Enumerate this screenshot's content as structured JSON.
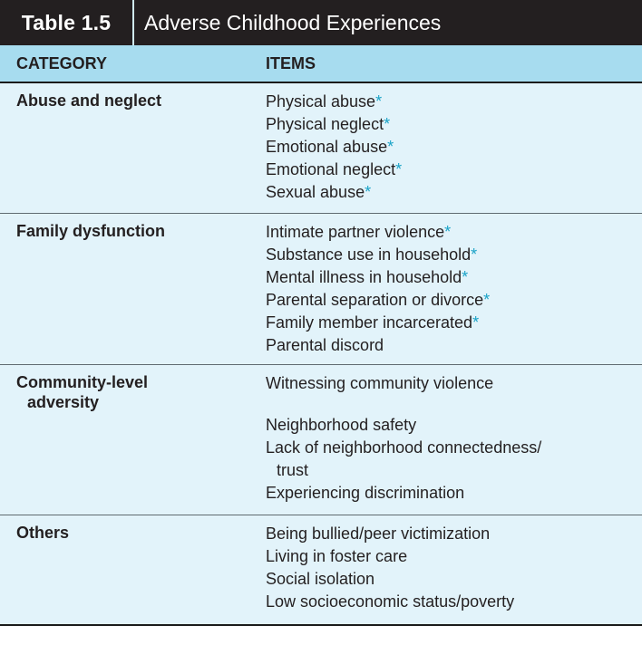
{
  "table": {
    "number": "Table 1.5",
    "title": "Adverse Childhood Experiences"
  },
  "headers": {
    "category": "CATEGORY",
    "items": "ITEMS"
  },
  "rows": [
    {
      "category": "Abuse and neglect",
      "items": [
        {
          "text": "Physical abuse",
          "star": "*"
        },
        {
          "text": "Physical neglect",
          "star": "*"
        },
        {
          "text": "Emotional abuse",
          "star": "*"
        },
        {
          "text": "Emotional neglect",
          "star": "*"
        },
        {
          "text": "Sexual abuse",
          "star": "*"
        }
      ]
    },
    {
      "category": "Family dysfunction",
      "items": [
        {
          "text": "Intimate partner violence",
          "star": "*"
        },
        {
          "text": "Substance use in household",
          "star": "*"
        },
        {
          "text": "Mental illness in household",
          "star": "*"
        },
        {
          "text": "Parental separation or divorce",
          "star": "*"
        },
        {
          "text": "Family member incarcerated",
          "star": "*"
        },
        {
          "text": "Parental discord",
          "star": ""
        }
      ]
    },
    {
      "category_line1": "Community-level",
      "category_line2": "adversity",
      "items": [
        {
          "text": "Witnessing community violence",
          "star": ""
        },
        {
          "text": "Neighborhood safety",
          "star": ""
        },
        {
          "text": "Lack of neighborhood connectedness/",
          "star": ""
        },
        {
          "text": "trust",
          "star": ""
        },
        {
          "text": "Experiencing discrimination",
          "star": ""
        }
      ]
    },
    {
      "category": "Others",
      "items": [
        {
          "text": "Being bullied/peer victimization",
          "star": ""
        },
        {
          "text": "Living in foster care",
          "star": ""
        },
        {
          "text": "Social isolation",
          "star": ""
        },
        {
          "text": "Low socioeconomic status/poverty",
          "star": ""
        }
      ]
    }
  ]
}
